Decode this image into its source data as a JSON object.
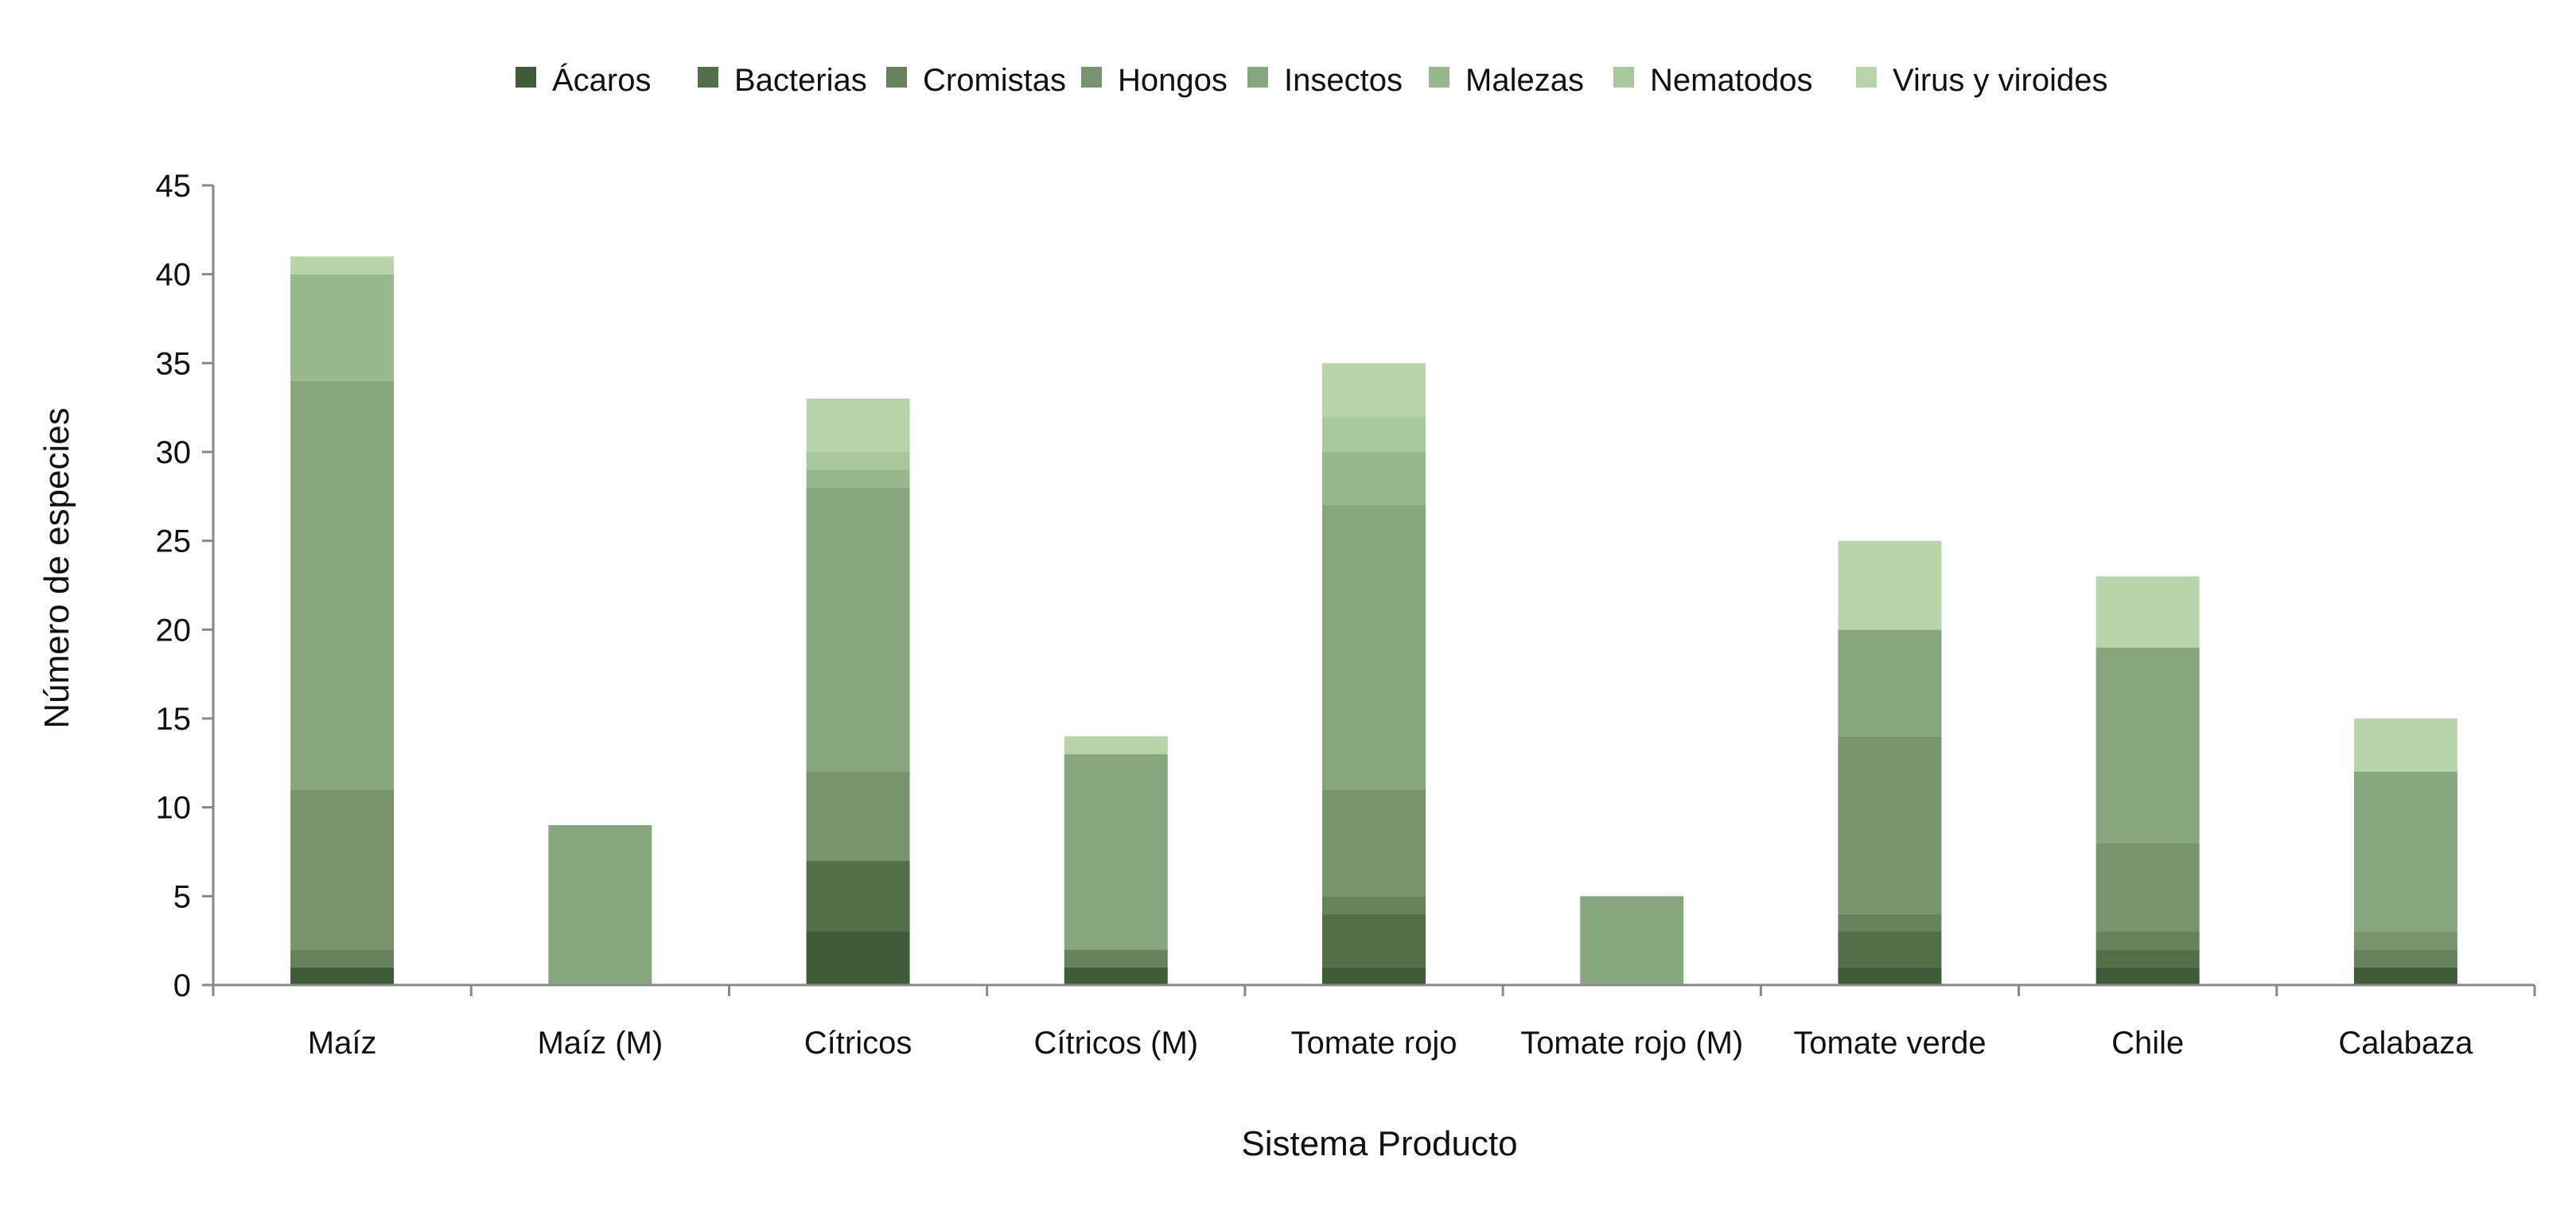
{
  "chart_data": {
    "type": "bar",
    "stacked": true,
    "title": "",
    "xlabel": "Sistema Producto",
    "ylabel": "Número de especies",
    "ylim": [
      0,
      45
    ],
    "yticks": [
      0,
      5,
      10,
      15,
      20,
      25,
      30,
      35,
      40,
      45
    ],
    "grid": false,
    "legend_position": "top",
    "categories": [
      "Maíz",
      "Maíz (M)",
      "Cítricos",
      "Cítricos (M)",
      "Tomate rojo",
      "Tomate rojo (M)",
      "Tomate verde",
      "Chile",
      "Calabaza"
    ],
    "series": [
      {
        "name": "Ácaros",
        "color": "#3e5c38",
        "values": [
          1,
          0,
          3,
          1,
          1,
          0,
          1,
          1,
          1
        ]
      },
      {
        "name": "Bacterias",
        "color": "#526f4a",
        "values": [
          0,
          0,
          4,
          0,
          3,
          0,
          2,
          1,
          0
        ]
      },
      {
        "name": "Cromistas",
        "color": "#65825c",
        "values": [
          1,
          0,
          0,
          1,
          1,
          0,
          1,
          1,
          1
        ]
      },
      {
        "name": "Hongos",
        "color": "#77946d",
        "values": [
          9,
          0,
          5,
          0,
          6,
          0,
          10,
          5,
          1
        ]
      },
      {
        "name": "Insectos",
        "color": "#86a67d",
        "values": [
          23,
          9,
          16,
          11,
          16,
          5,
          6,
          11,
          9
        ]
      },
      {
        "name": "Malezas",
        "color": "#97b78c",
        "values": [
          6,
          0,
          1,
          0,
          3,
          0,
          0,
          0,
          0
        ]
      },
      {
        "name": "Nematodos",
        "color": "#a7c89c",
        "values": [
          0,
          0,
          1,
          0,
          2,
          0,
          0,
          0,
          0
        ]
      },
      {
        "name": "Virus y viroides",
        "color": "#b8d5aa",
        "values": [
          1,
          0,
          3,
          1,
          3,
          0,
          5,
          4,
          3
        ]
      }
    ]
  }
}
